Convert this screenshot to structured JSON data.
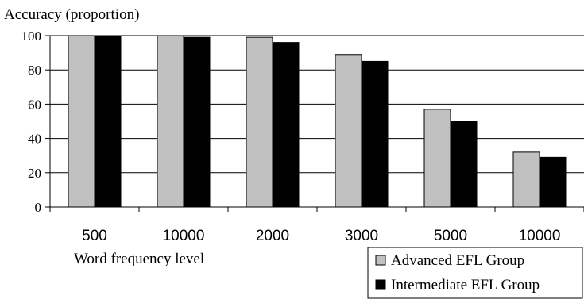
{
  "chart_data": {
    "type": "bar",
    "ylabel": "Accuracy (proportion)",
    "xlabel": "Word frequency level",
    "categories": [
      "500",
      "10000",
      "2000",
      "3000",
      "5000",
      "10000"
    ],
    "ylim": [
      0,
      100
    ],
    "yticks": [
      0,
      20,
      40,
      60,
      80,
      100
    ],
    "grid": true,
    "legend_position": "bottom-right",
    "series": [
      {
        "name": "Advanced EFL Group",
        "color": "#c0c0c0",
        "values": [
          100,
          100,
          99,
          89,
          57,
          32
        ]
      },
      {
        "name": "Intermediate EFL Group",
        "color": "#000000",
        "values": [
          100,
          99,
          96,
          85,
          50,
          29
        ]
      }
    ]
  }
}
